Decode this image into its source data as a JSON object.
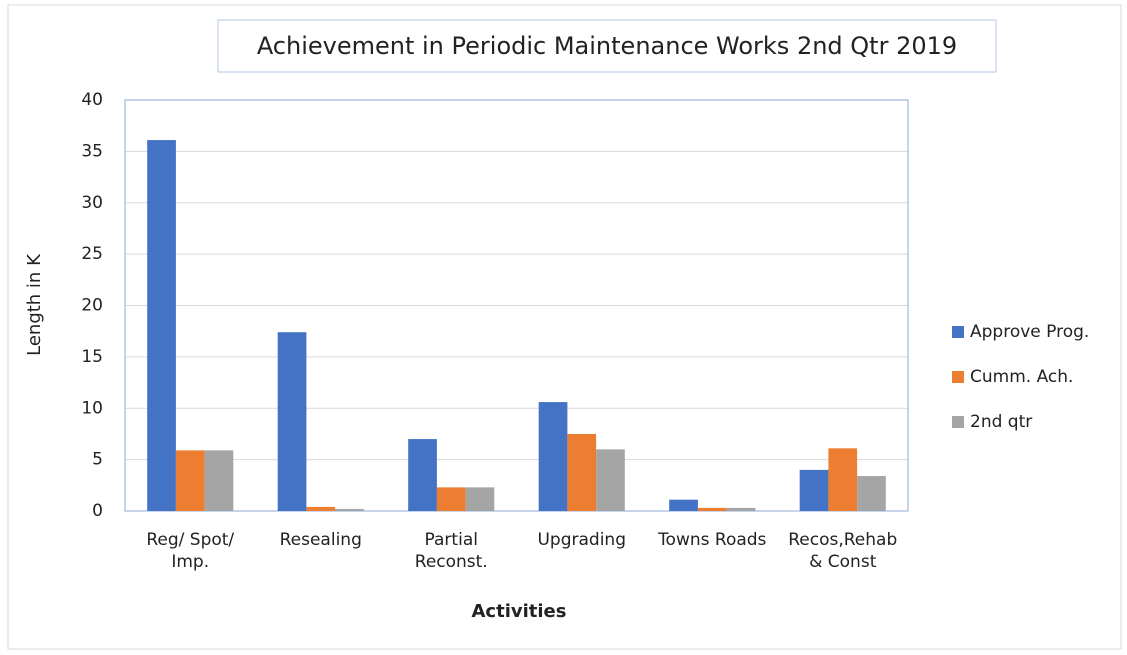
{
  "chart_data": {
    "type": "bar",
    "title": "Achievement in Periodic Maintenance Works 2nd Qtr 2019",
    "x_label": "Activities",
    "y_label": "Length in K",
    "categories": [
      "Reg/ Spot/ Imp.",
      "Resealing",
      "Partial Reconst.",
      "Upgrading",
      "Towns Roads",
      "Recos,Rehab & Const"
    ],
    "series": [
      {
        "name": "Approve Prog.",
        "color": "#4472c4",
        "values": [
          36.1,
          17.4,
          7.0,
          10.6,
          1.1,
          4.0
        ]
      },
      {
        "name": "Cumm. Ach.",
        "color": "#ed7d31",
        "values": [
          5.9,
          0.4,
          2.3,
          7.5,
          0.3,
          6.1
        ]
      },
      {
        "name": "2nd qtr",
        "color": "#a5a5a5",
        "values": [
          5.9,
          0.2,
          2.3,
          6.0,
          0.3,
          3.4
        ]
      }
    ],
    "ylim": [
      0,
      40
    ],
    "yticks": [
      0,
      5,
      10,
      15,
      20,
      25,
      30,
      35,
      40
    ],
    "grid": true,
    "legend": "right"
  }
}
